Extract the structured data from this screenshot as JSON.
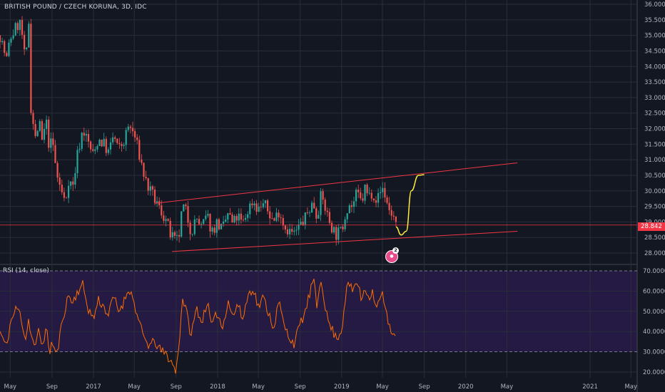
{
  "header": {
    "title": "BRITISH POUND / CZECH KORUNA, 3D, IDC"
  },
  "rsi": {
    "label": "RSI (14, close)"
  },
  "last_price": {
    "value": "28.842",
    "color": "#f23645"
  },
  "idea_badge": {
    "count": "2",
    "icon": "idea-user-icon"
  },
  "colors": {
    "up": "#26a69a",
    "down": "#ef5350",
    "channel": "#f23645",
    "projection": "#ffeb3b",
    "rsi_line": "#ff6d00",
    "rsi_band": "#2a1b4d"
  },
  "chart_data": [
    {
      "type": "candlestick",
      "title": "BRITISH POUND / CZECH KORUNA, 3D, IDC",
      "x_ticks": [
        "May",
        "Sep",
        "2017",
        "May",
        "Sep",
        "2018",
        "May",
        "Sep",
        "2019",
        "May",
        "Sep",
        "2020",
        "May",
        "2021",
        "May"
      ],
      "y_ticks": [
        "36.000",
        "35.500",
        "35.000",
        "34.500",
        "34.000",
        "33.500",
        "33.000",
        "32.500",
        "32.000",
        "31.500",
        "31.000",
        "30.500",
        "30.000",
        "29.500",
        "29.000",
        "28.500",
        "28.000"
      ],
      "ylim": [
        27.8,
        36.1
      ],
      "close_path": [
        [
          "2016-04",
          35.0
        ],
        [
          "2016-04-20",
          34.2
        ],
        [
          "2016-05",
          34.9
        ],
        [
          "2016-05-20",
          35.3
        ],
        [
          "2016-06",
          35.4
        ],
        [
          "2016-06-15",
          34.0
        ],
        [
          "2016-06-25",
          35.5
        ],
        [
          "2016-07",
          32.7
        ],
        [
          "2016-07-15",
          31.6
        ],
        [
          "2016-07-25",
          32.3
        ],
        [
          "2016-08",
          31.5
        ],
        [
          "2016-08-15",
          32.2
        ],
        [
          "2016-08-25",
          31.3
        ],
        [
          "2016-09",
          31.7
        ],
        [
          "2016-09-15",
          30.5
        ],
        [
          "2016-10",
          29.9
        ],
        [
          "2016-10-10",
          29.6
        ],
        [
          "2016-10-20",
          30.4
        ],
        [
          "2016-11",
          30.1
        ],
        [
          "2016-11-15",
          31.2
        ],
        [
          "2016-12",
          32.0
        ],
        [
          "2016-12-15",
          31.6
        ],
        [
          "2017-01",
          31.1
        ],
        [
          "2017-01-15",
          31.7
        ],
        [
          "2017-02",
          31.5
        ],
        [
          "2017-02-15",
          31.2
        ],
        [
          "2017-03",
          31.8
        ],
        [
          "2017-03-15",
          31.3
        ],
        [
          "2017-04",
          31.6
        ],
        [
          "2017-04-15",
          32.1
        ],
        [
          "2017-05",
          31.8
        ],
        [
          "2017-05-15",
          31.2
        ],
        [
          "2017-06",
          30.4
        ],
        [
          "2017-06-15",
          30.0
        ],
        [
          "2017-07",
          29.7
        ],
        [
          "2017-07-15",
          29.4
        ],
        [
          "2017-08",
          29.1
        ],
        [
          "2017-08-15",
          28.6
        ],
        [
          "2017-09",
          28.3
        ],
        [
          "2017-09-10",
          28.6
        ],
        [
          "2017-09-20",
          29.5
        ],
        [
          "2017-10",
          29.3
        ],
        [
          "2017-10-15",
          28.7
        ],
        [
          "2017-11",
          29.1
        ],
        [
          "2017-11-15",
          28.8
        ],
        [
          "2017-12",
          29.2
        ],
        [
          "2017-12-15",
          28.7
        ],
        [
          "2018-01",
          29.0
        ],
        [
          "2018-01-15",
          28.7
        ],
        [
          "2018-02",
          29.3
        ],
        [
          "2018-02-15",
          28.9
        ],
        [
          "2018-03",
          29.2
        ],
        [
          "2018-03-15",
          28.9
        ],
        [
          "2018-04",
          29.4
        ],
        [
          "2018-04-15",
          29.7
        ],
        [
          "2018-05",
          29.4
        ],
        [
          "2018-05-15",
          29.6
        ],
        [
          "2018-06",
          29.3
        ],
        [
          "2018-06-15",
          29.0
        ],
        [
          "2018-07",
          29.4
        ],
        [
          "2018-07-15",
          28.9
        ],
        [
          "2018-08",
          28.7
        ],
        [
          "2018-08-15",
          28.6
        ],
        [
          "2018-09",
          28.9
        ],
        [
          "2018-09-15",
          29.1
        ],
        [
          "2018-10",
          29.5
        ],
        [
          "2018-10-10",
          29.6
        ],
        [
          "2018-10-20",
          29.2
        ],
        [
          "2018-11",
          29.8
        ],
        [
          "2018-11-10",
          29.6
        ],
        [
          "2018-11-20",
          29.2
        ],
        [
          "2018-12",
          28.9
        ],
        [
          "2018-12-15",
          28.6
        ],
        [
          "2019-01",
          28.7
        ],
        [
          "2019-01-10",
          29.2
        ],
        [
          "2019-01-20",
          29.6
        ],
        [
          "2019-02",
          29.5
        ],
        [
          "2019-02-15",
          29.9
        ],
        [
          "2019-03",
          29.6
        ],
        [
          "2019-03-10",
          30.1
        ],
        [
          "2019-03-20",
          29.8
        ],
        [
          "2019-04",
          30.0
        ],
        [
          "2019-04-15",
          29.7
        ],
        [
          "2019-05",
          30.1
        ],
        [
          "2019-05-10",
          29.8
        ],
        [
          "2019-05-20",
          29.4
        ],
        [
          "2019-06",
          29.2
        ],
        [
          "2019-06-10",
          28.84
        ]
      ],
      "annotations": {
        "channel_upper": [
          [
            "2017-07",
            29.6
          ],
          [
            "2020-06",
            30.9
          ]
        ],
        "channel_lower": [
          [
            "2017-08-20",
            28.05
          ],
          [
            "2020-06",
            28.7
          ]
        ],
        "horizontal_level": 28.9,
        "projection": [
          [
            "2019-06-10",
            28.84
          ],
          [
            "2019-06-25",
            28.58
          ],
          [
            "2019-07-10",
            28.7
          ],
          [
            "2019-07-25",
            30.0
          ],
          [
            "2019-08-15",
            30.5
          ],
          [
            "2019-09",
            30.52
          ]
        ]
      }
    },
    {
      "type": "line",
      "title": "RSI (14, close)",
      "y_ticks": [
        "70.0000",
        "60.0000",
        "50.0000",
        "40.0000",
        "30.0000",
        "20.0000"
      ],
      "ylim": [
        18,
        72
      ],
      "bands": [
        30,
        70
      ],
      "values": [
        [
          "2016-04",
          40
        ],
        [
          "2016-04-20",
          32
        ],
        [
          "2016-05",
          44
        ],
        [
          "2016-05-20",
          52
        ],
        [
          "2016-06",
          48
        ],
        [
          "2016-06-15",
          36
        ],
        [
          "2016-06-25",
          47
        ],
        [
          "2016-07",
          38
        ],
        [
          "2016-07-15",
          32
        ],
        [
          "2016-07-25",
          42
        ],
        [
          "2016-08",
          33
        ],
        [
          "2016-08-15",
          41
        ],
        [
          "2016-08-25",
          30
        ],
        [
          "2016-09",
          35
        ],
        [
          "2016-09-15",
          28
        ],
        [
          "2016-10",
          45
        ],
        [
          "2016-10-10",
          52
        ],
        [
          "2016-10-20",
          58
        ],
        [
          "2016-11",
          54
        ],
        [
          "2016-11-15",
          60
        ],
        [
          "2016-12",
          63
        ],
        [
          "2016-12-15",
          52
        ],
        [
          "2017-01",
          46
        ],
        [
          "2017-01-15",
          56
        ],
        [
          "2017-02",
          52
        ],
        [
          "2017-02-15",
          48
        ],
        [
          "2017-03",
          58
        ],
        [
          "2017-03-15",
          50
        ],
        [
          "2017-04",
          55
        ],
        [
          "2017-04-15",
          62
        ],
        [
          "2017-05",
          54
        ],
        [
          "2017-05-15",
          44
        ],
        [
          "2017-06",
          36
        ],
        [
          "2017-06-15",
          33
        ],
        [
          "2017-07",
          35
        ],
        [
          "2017-07-15",
          31
        ],
        [
          "2017-08",
          29
        ],
        [
          "2017-08-15",
          26
        ],
        [
          "2017-09",
          20
        ],
        [
          "2017-09-10",
          35
        ],
        [
          "2017-09-20",
          57
        ],
        [
          "2017-10",
          50
        ],
        [
          "2017-10-15",
          38
        ],
        [
          "2017-11",
          52
        ],
        [
          "2017-11-15",
          44
        ],
        [
          "2017-12",
          55
        ],
        [
          "2017-12-15",
          42
        ],
        [
          "2018-01",
          50
        ],
        [
          "2018-01-15",
          41
        ],
        [
          "2018-02",
          56
        ],
        [
          "2018-02-15",
          47
        ],
        [
          "2018-03",
          54
        ],
        [
          "2018-03-15",
          46
        ],
        [
          "2018-04",
          58
        ],
        [
          "2018-04-15",
          62
        ],
        [
          "2018-05",
          52
        ],
        [
          "2018-05-15",
          57
        ],
        [
          "2018-06",
          49
        ],
        [
          "2018-06-15",
          42
        ],
        [
          "2018-07",
          55
        ],
        [
          "2018-07-15",
          43
        ],
        [
          "2018-08",
          37
        ],
        [
          "2018-08-15",
          34
        ],
        [
          "2018-09",
          44
        ],
        [
          "2018-09-15",
          49
        ],
        [
          "2018-10",
          60
        ],
        [
          "2018-10-10",
          66
        ],
        [
          "2018-10-20",
          52
        ],
        [
          "2018-11",
          67
        ],
        [
          "2018-11-10",
          57
        ],
        [
          "2018-11-20",
          46
        ],
        [
          "2018-12",
          42
        ],
        [
          "2018-12-15",
          37
        ],
        [
          "2019-01",
          40
        ],
        [
          "2019-01-10",
          55
        ],
        [
          "2019-01-20",
          64
        ],
        [
          "2019-02",
          60
        ],
        [
          "2019-02-15",
          65
        ],
        [
          "2019-03",
          55
        ],
        [
          "2019-03-10",
          63
        ],
        [
          "2019-03-20",
          57
        ],
        [
          "2019-04",
          60
        ],
        [
          "2019-04-15",
          52
        ],
        [
          "2019-05",
          59
        ],
        [
          "2019-05-10",
          50
        ],
        [
          "2019-05-20",
          43
        ],
        [
          "2019-06",
          40
        ],
        [
          "2019-06-10",
          36
        ]
      ]
    }
  ]
}
